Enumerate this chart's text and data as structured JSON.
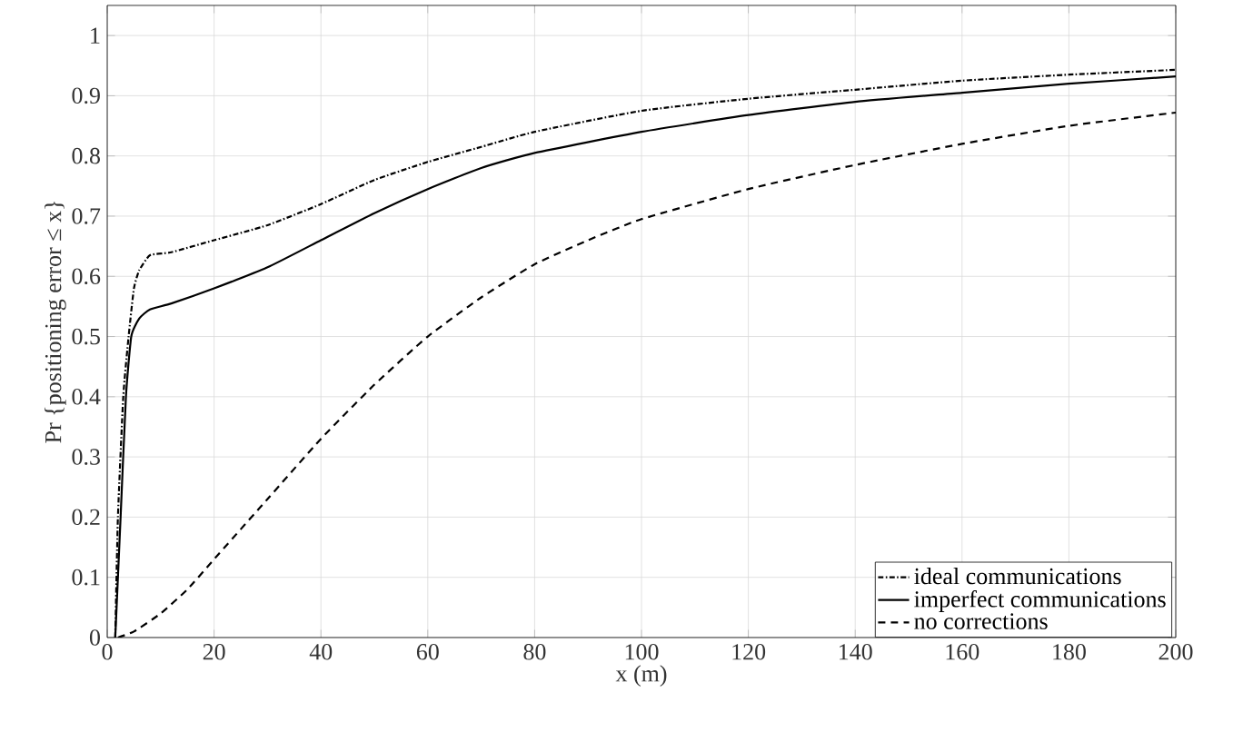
{
  "chart_data": {
    "type": "line",
    "xlabel": "x (m)",
    "ylabel": "Pr {positioning error ≤ x}",
    "xlim": [
      0,
      200
    ],
    "ylim": [
      0,
      1.05
    ],
    "xticks": [
      0,
      20,
      40,
      60,
      80,
      100,
      120,
      140,
      160,
      180,
      200
    ],
    "yticks": [
      0,
      0.1,
      0.2,
      0.3,
      0.4,
      0.5,
      0.6,
      0.7,
      0.8,
      0.9,
      1
    ],
    "grid": true,
    "legend": "bottom right",
    "series": [
      {
        "name": "ideal communications",
        "color": "#000000",
        "line_style": "dashdot",
        "x": [
          1.5,
          2,
          3,
          4,
          5,
          6,
          8,
          12,
          20,
          30,
          40,
          50,
          60,
          70,
          80,
          100,
          120,
          140,
          160,
          180,
          200
        ],
        "values": [
          0,
          0.2,
          0.4,
          0.5,
          0.58,
          0.61,
          0.635,
          0.64,
          0.66,
          0.685,
          0.72,
          0.76,
          0.79,
          0.815,
          0.84,
          0.875,
          0.895,
          0.91,
          0.925,
          0.935,
          0.943
        ]
      },
      {
        "name": "imperfect communications",
        "color": "#000000",
        "line_style": "solid",
        "x": [
          1.5,
          2.5,
          3.5,
          4.5,
          6,
          8,
          12,
          20,
          30,
          40,
          50,
          60,
          70,
          80,
          100,
          120,
          140,
          160,
          180,
          200
        ],
        "values": [
          0,
          0.2,
          0.4,
          0.5,
          0.53,
          0.545,
          0.555,
          0.58,
          0.615,
          0.66,
          0.705,
          0.745,
          0.78,
          0.805,
          0.84,
          0.868,
          0.89,
          0.905,
          0.92,
          0.932
        ]
      },
      {
        "name": "no corrections",
        "color": "#000000",
        "line_style": "dashed",
        "x": [
          2,
          5,
          10,
          15,
          20,
          30,
          40,
          50,
          60,
          70,
          80,
          90,
          100,
          120,
          140,
          160,
          180,
          200
        ],
        "values": [
          0,
          0.01,
          0.04,
          0.08,
          0.13,
          0.23,
          0.33,
          0.42,
          0.5,
          0.565,
          0.62,
          0.66,
          0.695,
          0.745,
          0.785,
          0.82,
          0.85,
          0.872
        ]
      }
    ]
  }
}
